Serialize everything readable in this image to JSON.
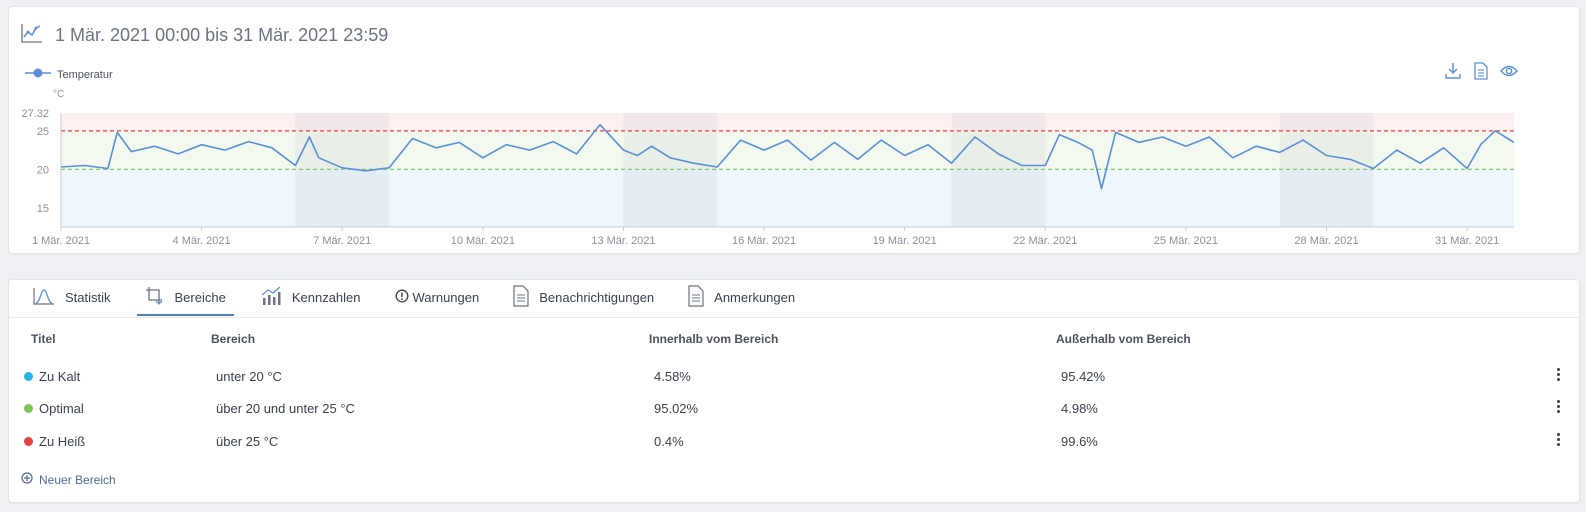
{
  "header": {
    "title": "1 Mär. 2021 00:00 bis 31 Mär. 2021 23:59"
  },
  "legend": {
    "series_name": "Temperatur",
    "unit": "°C"
  },
  "icons": {
    "chart": "line-chart-icon",
    "download": "download-icon",
    "document": "document-icon",
    "eye": "eye-icon"
  },
  "colors": {
    "line": "#5a8fd8",
    "cold": "#29b6e6",
    "optimal": "#7bc45a",
    "hot": "#e84040",
    "accent": "#4a7fc4"
  },
  "chart_data": {
    "type": "line",
    "ylim": [
      12.5,
      27.32
    ],
    "yticks": [
      15,
      20,
      25
    ],
    "ymax_label": "27.32",
    "xlabels": [
      "1 Mär. 2021",
      "4 Mär. 2021",
      "7 Mär. 2021",
      "10 Mär. 2021",
      "13 Mär. 2021",
      "16 Mär. 2021",
      "19 Mär. 2021",
      "22 Mär. 2021",
      "25 Mär. 2021",
      "28 Mär. 2021",
      "31 Mär. 2021"
    ],
    "xlabel_days": [
      1,
      4,
      7,
      10,
      13,
      16,
      19,
      22,
      25,
      28,
      31
    ],
    "weekend_days": [
      6,
      13,
      20,
      27
    ],
    "thresholds": {
      "low": 20,
      "high": 25
    },
    "grid": false,
    "series": [
      {
        "name": "Temperatur",
        "x": [
          1.0,
          1.5,
          2.0,
          2.2,
          2.5,
          3.0,
          3.5,
          4.0,
          4.5,
          5.0,
          5.5,
          6.0,
          6.3,
          6.5,
          7.0,
          7.5,
          8.0,
          8.5,
          9.0,
          9.5,
          10.0,
          10.5,
          11.0,
          11.5,
          12.0,
          12.5,
          13.0,
          13.3,
          13.6,
          14.0,
          14.5,
          15.0,
          15.5,
          16.0,
          16.5,
          17.0,
          17.5,
          18.0,
          18.5,
          19.0,
          19.5,
          20.0,
          20.5,
          21.0,
          21.5,
          22.0,
          22.3,
          22.7,
          23.0,
          23.2,
          23.5,
          24.0,
          24.5,
          25.0,
          25.5,
          26.0,
          26.5,
          27.0,
          27.5,
          28.0,
          28.5,
          29.0,
          29.5,
          30.0,
          30.5,
          31.0,
          31.3,
          31.6,
          32.0
        ],
        "values": [
          20.3,
          20.5,
          20.1,
          24.8,
          22.3,
          23.0,
          22.0,
          23.2,
          22.5,
          23.6,
          22.8,
          20.5,
          24.2,
          21.5,
          20.2,
          19.8,
          20.2,
          24.0,
          22.8,
          23.5,
          21.5,
          23.2,
          22.5,
          23.6,
          22.0,
          25.8,
          22.5,
          21.8,
          23.0,
          21.5,
          20.8,
          20.3,
          23.8,
          22.5,
          23.8,
          21.2,
          23.5,
          21.3,
          23.8,
          21.8,
          23.2,
          20.8,
          24.2,
          22.0,
          20.5,
          20.5,
          24.5,
          23.5,
          22.5,
          17.5,
          24.8,
          23.5,
          24.2,
          23.0,
          24.2,
          21.5,
          23.0,
          22.2,
          23.8,
          21.8,
          21.3,
          20.1,
          22.5,
          20.8,
          22.8,
          20.1,
          23.3,
          25.0,
          23.5
        ]
      }
    ]
  },
  "tabs": [
    {
      "label": "Statistik",
      "icon": "bell-curve-icon"
    },
    {
      "label": "Bereiche",
      "icon": "crop-range-icon"
    },
    {
      "label": "Kennzahlen",
      "icon": "bar-trend-icon"
    },
    {
      "label": "Warnungen",
      "icon": "warning-circle-icon"
    },
    {
      "label": "Benachrichtigungen",
      "icon": "document-icon"
    },
    {
      "label": "Anmerkungen",
      "icon": "document-icon"
    }
  ],
  "table": {
    "headers": {
      "title": "Titel",
      "range": "Bereich",
      "inside": "Innerhalb vom Bereich",
      "outside": "Außerhalb vom Bereich"
    },
    "rows": [
      {
        "title": "Zu Kalt",
        "range": "unter 20 °C",
        "inside": "4.58%",
        "outside": "95.42%",
        "color": "#29b6e6"
      },
      {
        "title": "Optimal",
        "range": "über 20 und unter 25 °C",
        "inside": "95.02%",
        "outside": "4.98%",
        "color": "#7bc45a"
      },
      {
        "title": "Zu Heiß",
        "range": "über 25 °C",
        "inside": "0.4%",
        "outside": "99.6%",
        "color": "#e84040"
      }
    ],
    "new_range_label": "Neuer Bereich"
  }
}
